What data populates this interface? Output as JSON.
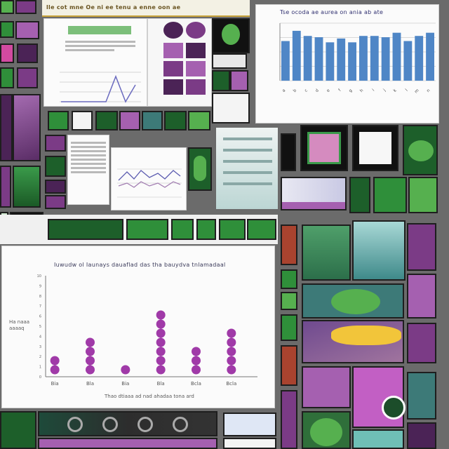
{
  "collage": {
    "top_banner_text": "lle cot mne Oe ni ee tenu a enne oon ae",
    "top_panel_title": "Tse ocoda ae aurea on ania ab ate",
    "lower_panel_title": "Iuwudw ol Iaunays dauaflad das tha bauydva tnlamadaal",
    "lower_panel_xlabel": "Thao dtiaaa ad nad ahadaa tona ard",
    "lower_panel_ylabel": "Ha naaa aaaaq",
    "server_label": "",
    "accent_green": "#2f8f3a",
    "accent_purple": "#a03aa8"
  },
  "chart_data": [
    {
      "type": "bar",
      "title": "Tse ocoda ae aurea on ania ab ate",
      "categories": [
        "a",
        "b",
        "c",
        "d",
        "e",
        "f",
        "g",
        "h",
        "i",
        "j",
        "k",
        "l",
        "m",
        "n"
      ],
      "values": [
        62,
        78,
        70,
        68,
        60,
        66,
        60,
        70,
        70,
        68,
        75,
        62,
        70,
        75
      ],
      "ylim": [
        0,
        90
      ],
      "grid": true
    },
    {
      "type": "scatter",
      "title": "Iuwudw ol Iaunays dauaflad das tha bauydva tnlamadaal",
      "xlabel": "Thao dtiaaa ad nad ahadaa tona ard",
      "ylabel": "Ha naaa aaaaq",
      "categories": [
        "Bia",
        "Bla",
        "Bia",
        "Bla",
        "Bcla",
        "Bcla"
      ],
      "counts": [
        2,
        4,
        1,
        7,
        3,
        5
      ],
      "ylim": [
        0,
        10
      ],
      "marker": "dot-stack"
    }
  ]
}
